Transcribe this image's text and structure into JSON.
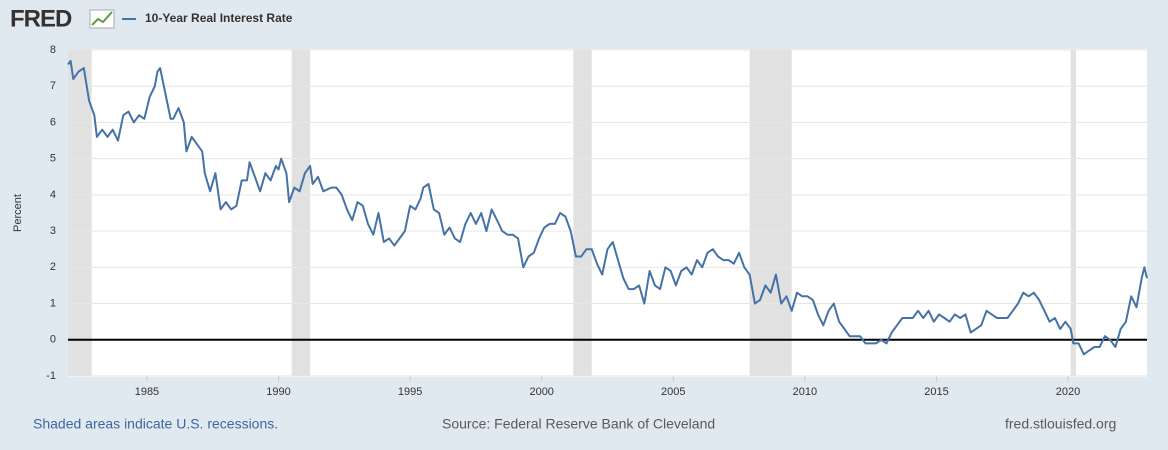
{
  "logo": "FRED",
  "footer": {
    "recessions_note": "Shaded areas indicate U.S. recessions.",
    "source": "Source: Federal Reserve Bank of Cleveland",
    "site": "fred.stlouisfed.org"
  },
  "chart_data": {
    "type": "line",
    "y_label": "Percent",
    "grid": true,
    "legend": "top-left",
    "xlim": [
      1982,
      2023
    ],
    "xticks": [
      1985,
      1990,
      1995,
      2000,
      2005,
      2010,
      2015,
      2020
    ],
    "ylim": [
      -1,
      8
    ],
    "yticks": [
      -1,
      0,
      1,
      2,
      3,
      4,
      5,
      6,
      7,
      8
    ],
    "recessions": [
      [
        1982.0,
        1982.9
      ],
      [
        1990.5,
        1991.2
      ],
      [
        2001.2,
        2001.9
      ],
      [
        2007.9,
        2009.5
      ],
      [
        2020.1,
        2020.3
      ]
    ],
    "x": [
      1982.0,
      1982.1,
      1982.2,
      1982.4,
      1982.6,
      1982.8,
      1983.0,
      1983.1,
      1983.3,
      1983.5,
      1983.7,
      1983.9,
      1984.1,
      1984.3,
      1984.5,
      1984.7,
      1984.9,
      1985.1,
      1985.3,
      1985.4,
      1985.5,
      1985.7,
      1985.9,
      1986.0,
      1986.2,
      1986.4,
      1986.5,
      1986.7,
      1986.9,
      1987.1,
      1987.2,
      1987.4,
      1987.6,
      1987.8,
      1988.0,
      1988.2,
      1988.4,
      1988.6,
      1988.8,
      1988.9,
      1989.1,
      1989.3,
      1989.5,
      1989.7,
      1989.9,
      1990.0,
      1990.1,
      1990.3,
      1990.4,
      1990.6,
      1990.8,
      1991.0,
      1991.2,
      1991.3,
      1991.5,
      1991.7,
      1992.0,
      1992.2,
      1992.4,
      1992.6,
      1992.8,
      1993.0,
      1993.2,
      1993.4,
      1993.6,
      1993.8,
      1994.0,
      1994.2,
      1994.4,
      1994.6,
      1994.8,
      1995.0,
      1995.2,
      1995.4,
      1995.5,
      1995.7,
      1995.9,
      1996.1,
      1996.3,
      1996.5,
      1996.7,
      1996.9,
      1997.1,
      1997.3,
      1997.5,
      1997.7,
      1997.9,
      1998.1,
      1998.3,
      1998.5,
      1998.7,
      1998.9,
      1999.1,
      1999.3,
      1999.5,
      1999.7,
      1999.9,
      2000.1,
      2000.3,
      2000.5,
      2000.7,
      2000.9,
      2001.1,
      2001.3,
      2001.5,
      2001.7,
      2001.9,
      2002.1,
      2002.3,
      2002.5,
      2002.7,
      2002.9,
      2003.1,
      2003.3,
      2003.5,
      2003.7,
      2003.9,
      2004.1,
      2004.3,
      2004.5,
      2004.7,
      2004.9,
      2005.1,
      2005.3,
      2005.5,
      2005.7,
      2005.9,
      2006.1,
      2006.3,
      2006.5,
      2006.7,
      2006.9,
      2007.1,
      2007.3,
      2007.5,
      2007.7,
      2007.9,
      2008.1,
      2008.3,
      2008.5,
      2008.7,
      2008.9,
      2009.1,
      2009.3,
      2009.5,
      2009.7,
      2009.9,
      2010.1,
      2010.3,
      2010.5,
      2010.7,
      2010.9,
      2011.1,
      2011.3,
      2011.5,
      2011.7,
      2011.9,
      2012.1,
      2012.3,
      2012.5,
      2012.7,
      2012.9,
      2013.1,
      2013.3,
      2013.5,
      2013.7,
      2013.9,
      2014.1,
      2014.3,
      2014.5,
      2014.7,
      2014.9,
      2015.1,
      2015.3,
      2015.5,
      2015.7,
      2015.9,
      2016.1,
      2016.3,
      2016.5,
      2016.7,
      2016.9,
      2017.1,
      2017.3,
      2017.5,
      2017.7,
      2017.9,
      2018.1,
      2018.3,
      2018.5,
      2018.7,
      2018.9,
      2019.1,
      2019.3,
      2019.5,
      2019.7,
      2019.9,
      2020.1,
      2020.2,
      2020.4,
      2020.6,
      2020.8,
      2021.0,
      2021.2,
      2021.4,
      2021.6,
      2021.8,
      2022.0,
      2022.2,
      2022.4,
      2022.6,
      2022.8,
      2022.9,
      2023.0
    ],
    "series": [
      {
        "name": "10-Year Real Interest Rate",
        "color": "#4572a7",
        "values": [
          7.6,
          7.7,
          7.2,
          7.4,
          7.5,
          6.6,
          6.2,
          5.6,
          5.8,
          5.6,
          5.8,
          5.5,
          6.2,
          6.3,
          6.0,
          6.2,
          6.1,
          6.7,
          7.0,
          7.4,
          7.5,
          6.8,
          6.1,
          6.1,
          6.4,
          6.0,
          5.2,
          5.6,
          5.4,
          5.2,
          4.6,
          4.1,
          4.6,
          3.6,
          3.8,
          3.6,
          3.7,
          4.4,
          4.4,
          4.9,
          4.5,
          4.1,
          4.6,
          4.4,
          4.8,
          4.7,
          5.0,
          4.6,
          3.8,
          4.2,
          4.1,
          4.6,
          4.8,
          4.3,
          4.5,
          4.1,
          4.2,
          4.2,
          4.0,
          3.6,
          3.3,
          3.8,
          3.7,
          3.2,
          2.9,
          3.5,
          2.7,
          2.8,
          2.6,
          2.8,
          3.0,
          3.7,
          3.6,
          3.9,
          4.2,
          4.3,
          3.6,
          3.5,
          2.9,
          3.1,
          2.8,
          2.7,
          3.2,
          3.5,
          3.2,
          3.5,
          3.0,
          3.6,
          3.3,
          3.0,
          2.9,
          2.9,
          2.8,
          2.0,
          2.3,
          2.4,
          2.8,
          3.1,
          3.2,
          3.2,
          3.5,
          3.4,
          3.0,
          2.3,
          2.3,
          2.5,
          2.5,
          2.1,
          1.8,
          2.5,
          2.7,
          2.2,
          1.7,
          1.4,
          1.4,
          1.5,
          1.0,
          1.9,
          1.5,
          1.4,
          2.0,
          1.9,
          1.5,
          1.9,
          2.0,
          1.8,
          2.2,
          2.0,
          2.4,
          2.5,
          2.3,
          2.2,
          2.2,
          2.1,
          2.4,
          2.0,
          1.8,
          1.0,
          1.1,
          1.5,
          1.3,
          1.8,
          1.0,
          1.2,
          0.8,
          1.3,
          1.2,
          1.2,
          1.1,
          0.7,
          0.4,
          0.8,
          1.0,
          0.5,
          0.3,
          0.1,
          0.1,
          0.1,
          -0.1,
          -0.1,
          -0.1,
          0.0,
          -0.1,
          0.2,
          0.4,
          0.6,
          0.6,
          0.6,
          0.8,
          0.6,
          0.8,
          0.5,
          0.7,
          0.6,
          0.5,
          0.7,
          0.6,
          0.7,
          0.2,
          0.3,
          0.4,
          0.8,
          0.7,
          0.6,
          0.6,
          0.6,
          0.8,
          1.0,
          1.3,
          1.2,
          1.3,
          1.1,
          0.8,
          0.5,
          0.6,
          0.3,
          0.5,
          0.3,
          -0.1,
          -0.1,
          -0.4,
          -0.3,
          -0.2,
          -0.2,
          0.1,
          0.0,
          -0.2,
          0.3,
          0.5,
          1.2,
          0.9,
          1.7,
          2.0,
          1.7
        ]
      }
    ]
  }
}
